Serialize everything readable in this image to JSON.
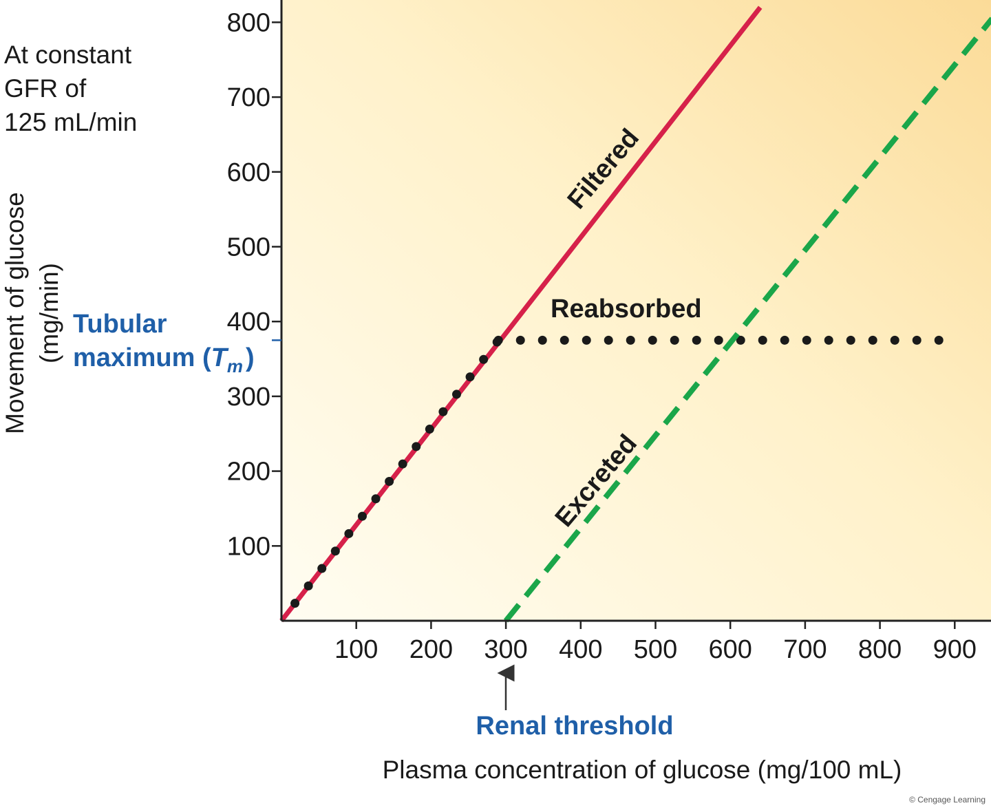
{
  "chart_data": {
    "type": "line",
    "title": "",
    "note_lines": [
      "At constant",
      "GFR of",
      "125 mL/min"
    ],
    "xlabel": "Plasma concentration of glucose (mg/100 mL)",
    "ylabel_lines": [
      "Movement of glucose",
      "(mg/min)"
    ],
    "xlim": [
      0,
      950
    ],
    "ylim": [
      0,
      830
    ],
    "xticks": [
      100,
      200,
      300,
      400,
      500,
      600,
      700,
      800,
      900
    ],
    "yticks": [
      100,
      200,
      300,
      400,
      500,
      600,
      700,
      800
    ],
    "series": [
      {
        "name": "Filtered",
        "style": "solid",
        "color": "#d6214a",
        "points": [
          [
            0,
            0
          ],
          [
            640,
            820
          ]
        ]
      },
      {
        "name": "Reabsorbed",
        "style": "dotted",
        "color": "#1a1a1a",
        "points": [
          [
            0,
            0
          ],
          [
            290,
            375
          ],
          [
            890,
            375
          ]
        ]
      },
      {
        "name": "Excreted",
        "style": "dashed",
        "color": "#1aa64a",
        "points": [
          [
            300,
            0
          ],
          [
            950,
            805
          ]
        ]
      }
    ],
    "annotations": {
      "tubular_max": {
        "line1": "Tubular",
        "line2": "maximum (",
        "symbol": "T",
        "subscript": "m",
        "close": ")",
        "value": 375
      },
      "renal_threshold": {
        "label": "Renal threshold",
        "value": 300
      }
    },
    "credit": "© Cengage Learning",
    "colors": {
      "bg_light": "#fffbec",
      "bg_dark": "#fbdc9a",
      "callout": "#1f5fa8"
    }
  }
}
